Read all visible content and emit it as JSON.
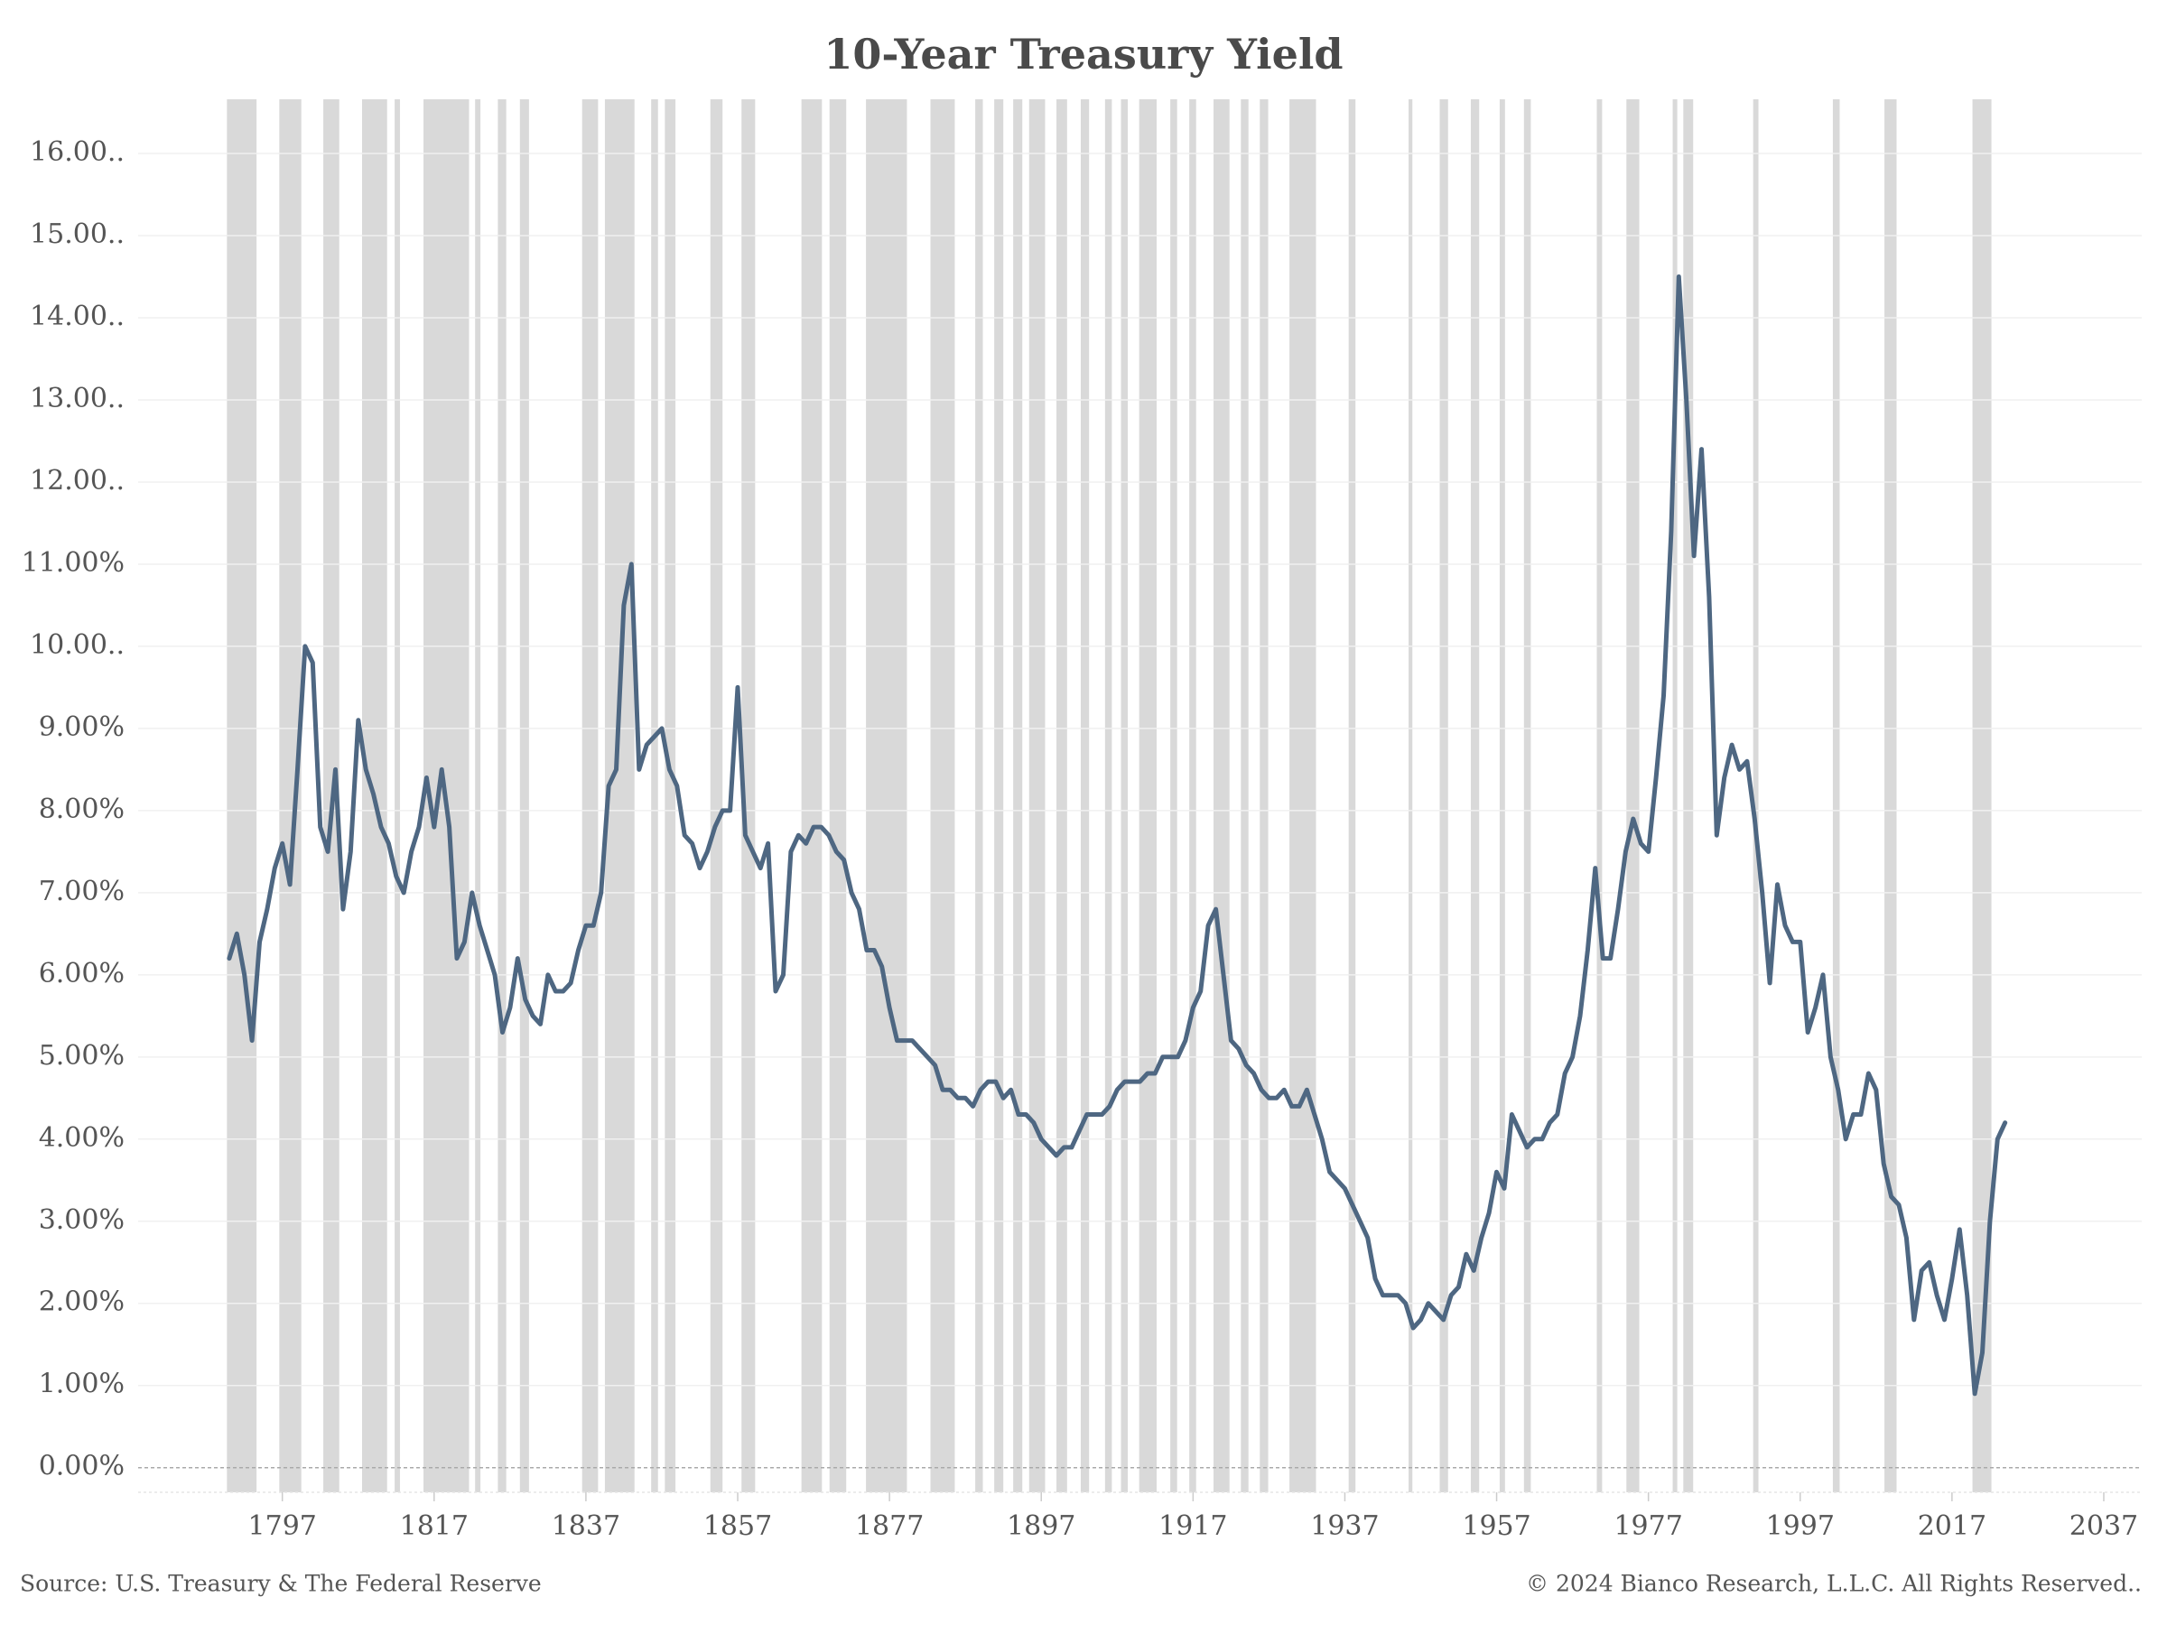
{
  "chart_data": {
    "type": "line",
    "title": "10-Year Treasury Yield",
    "source": "Source: U.S. Treasury & The Federal Reserve",
    "copyright": "© 2024 Bianco Research, L.L.C. All Rights Reserved..",
    "color": "#4e6782",
    "recession_color": "#d9d9d9",
    "grid": true,
    "xlim": [
      1778,
      2042
    ],
    "ylim": [
      -0.3,
      16.66
    ],
    "xticks": [
      1797,
      1817,
      1837,
      1857,
      1877,
      1897,
      1917,
      1937,
      1957,
      1977,
      1997,
      2017,
      2037
    ],
    "yticks": [
      {
        "value": 0,
        "label": "0.00%"
      },
      {
        "value": 1,
        "label": "1.00%"
      },
      {
        "value": 2,
        "label": "2.00%"
      },
      {
        "value": 3,
        "label": "3.00%"
      },
      {
        "value": 4,
        "label": "4.00%"
      },
      {
        "value": 5,
        "label": "5.00%"
      },
      {
        "value": 6,
        "label": "6.00%"
      },
      {
        "value": 7,
        "label": "7.00%"
      },
      {
        "value": 8,
        "label": "8.00%"
      },
      {
        "value": 9,
        "label": "9.00%"
      },
      {
        "value": 10,
        "label": "10.00.."
      },
      {
        "value": 11,
        "label": "11.00%"
      },
      {
        "value": 12,
        "label": "12.00.."
      },
      {
        "value": 13,
        "label": "13.00.."
      },
      {
        "value": 14,
        "label": "14.00.."
      },
      {
        "value": 15,
        "label": "15.00.."
      },
      {
        "value": 16,
        "label": "16.00.."
      }
    ],
    "recessions": [
      [
        1789.7,
        1793.6
      ],
      [
        1796.6,
        1799.5
      ],
      [
        1802.4,
        1804.5
      ],
      [
        1807.5,
        1810.8
      ],
      [
        1811.8,
        1812.5
      ],
      [
        1815.6,
        1821.6
      ],
      [
        1822.4,
        1823.1
      ],
      [
        1825.4,
        1826.5
      ],
      [
        1828.3,
        1829.5
      ],
      [
        1836.5,
        1838.6
      ],
      [
        1839.5,
        1843.4
      ],
      [
        1845.6,
        1846.5
      ],
      [
        1847.4,
        1848.8
      ],
      [
        1853.4,
        1855.0
      ],
      [
        1857.5,
        1859.3
      ],
      [
        1865.4,
        1868.1
      ],
      [
        1869.1,
        1871.3
      ],
      [
        1873.9,
        1879.3
      ],
      [
        1882.4,
        1885.6
      ],
      [
        1888.3,
        1889.3
      ],
      [
        1890.8,
        1892.0
      ],
      [
        1893.3,
        1894.5
      ],
      [
        1895.4,
        1897.5
      ],
      [
        1899.0,
        1900.4
      ],
      [
        1902.2,
        1903.3
      ],
      [
        1905.4,
        1906.3
      ],
      [
        1907.5,
        1908.4
      ],
      [
        1909.9,
        1912.2
      ],
      [
        1914.0,
        1914.9
      ],
      [
        1916.5,
        1917.4
      ],
      [
        1919.7,
        1921.8
      ],
      [
        1923.3,
        1924.3
      ],
      [
        1925.8,
        1926.9
      ],
      [
        1929.7,
        1933.2
      ],
      [
        1937.5,
        1938.4
      ],
      [
        1945.4,
        1945.9
      ],
      [
        1949.5,
        1950.6
      ],
      [
        1953.6,
        1954.7
      ],
      [
        1957.4,
        1958.1
      ],
      [
        1960.6,
        1961.5
      ],
      [
        1970.2,
        1970.9
      ],
      [
        1974.1,
        1975.8
      ],
      [
        1980.2,
        1980.8
      ],
      [
        1981.6,
        1982.9
      ],
      [
        1990.8,
        1991.5
      ],
      [
        2001.3,
        2002.2
      ],
      [
        2008.1,
        2009.7
      ],
      [
        2019.7,
        2022.2
      ]
    ],
    "x": [
      1790,
      1791,
      1792,
      1793,
      1794,
      1795,
      1796,
      1797,
      1798,
      1799,
      1800,
      1801,
      1802,
      1803,
      1804,
      1805,
      1806,
      1807,
      1808,
      1809,
      1810,
      1811,
      1812,
      1813,
      1814,
      1815,
      1816,
      1817,
      1818,
      1819,
      1820,
      1821,
      1822,
      1823,
      1824,
      1825,
      1826,
      1827,
      1828,
      1829,
      1830,
      1831,
      1832,
      1833,
      1834,
      1835,
      1836,
      1837,
      1838,
      1839,
      1840,
      1841,
      1842,
      1843,
      1844,
      1845,
      1846,
      1847,
      1848,
      1849,
      1850,
      1851,
      1852,
      1853,
      1854,
      1855,
      1856,
      1857,
      1858,
      1859,
      1860,
      1861,
      1862,
      1863,
      1864,
      1865,
      1866,
      1867,
      1868,
      1869,
      1870,
      1871,
      1872,
      1873,
      1874,
      1875,
      1876,
      1877,
      1878,
      1879,
      1880,
      1881,
      1882,
      1883,
      1884,
      1885,
      1886,
      1887,
      1888,
      1889,
      1890,
      1891,
      1892,
      1893,
      1894,
      1895,
      1896,
      1897,
      1898,
      1899,
      1900,
      1901,
      1902,
      1903,
      1904,
      1905,
      1906,
      1907,
      1908,
      1909,
      1910,
      1911,
      1912,
      1913,
      1914,
      1915,
      1916,
      1917,
      1918,
      1919,
      1920,
      1921,
      1922,
      1923,
      1924,
      1925,
      1926,
      1927,
      1928,
      1929,
      1930,
      1931,
      1932,
      1933,
      1934,
      1935,
      1936,
      1937,
      1938,
      1939,
      1940,
      1941,
      1942,
      1943,
      1944,
      1945,
      1946,
      1947,
      1948,
      1949,
      1950,
      1951,
      1952,
      1953,
      1954,
      1955,
      1956,
      1957,
      1958,
      1959,
      1960,
      1961,
      1962,
      1963,
      1964,
      1965,
      1966,
      1967,
      1968,
      1969,
      1970,
      1971,
      1972,
      1973,
      1974,
      1975,
      1976,
      1977,
      1978,
      1979,
      1980,
      1981,
      1982,
      1983,
      1984,
      1985,
      1986,
      1987,
      1988,
      1989,
      1990,
      1991,
      1992,
      1993,
      1994,
      1995,
      1996,
      1997,
      1998,
      1999,
      2000,
      2001,
      2002,
      2003,
      2004,
      2005,
      2006,
      2007,
      2008,
      2009,
      2010,
      2011,
      2012,
      2013,
      2014,
      2015,
      2016,
      2017,
      2018,
      2019,
      2020,
      2021,
      2022,
      2023,
      2024
    ],
    "values": [
      6.2,
      6.5,
      6.0,
      5.2,
      6.4,
      6.8,
      7.3,
      7.6,
      7.1,
      8.5,
      10.0,
      9.8,
      7.8,
      7.5,
      8.5,
      6.8,
      7.5,
      9.1,
      8.5,
      8.2,
      7.8,
      7.6,
      7.2,
      7.0,
      7.5,
      7.8,
      8.4,
      7.8,
      8.5,
      7.8,
      6.2,
      6.4,
      7.0,
      6.6,
      6.3,
      6.0,
      5.3,
      5.6,
      6.2,
      5.7,
      5.5,
      5.4,
      6.0,
      5.8,
      5.8,
      5.9,
      6.3,
      6.6,
      6.6,
      7.0,
      8.3,
      8.5,
      10.5,
      11.0,
      8.5,
      8.8,
      8.9,
      9.0,
      8.5,
      8.3,
      7.7,
      7.6,
      7.3,
      7.5,
      7.8,
      8.0,
      8.0,
      9.5,
      7.7,
      7.5,
      7.3,
      7.6,
      5.8,
      6.0,
      7.5,
      7.7,
      7.6,
      7.8,
      7.8,
      7.7,
      7.5,
      7.4,
      7.0,
      6.8,
      6.3,
      6.3,
      6.1,
      5.6,
      5.2,
      5.2,
      5.2,
      5.1,
      5.0,
      4.9,
      4.6,
      4.6,
      4.5,
      4.5,
      4.4,
      4.6,
      4.7,
      4.7,
      4.5,
      4.6,
      4.3,
      4.3,
      4.2,
      4.0,
      3.9,
      3.8,
      3.9,
      3.9,
      4.1,
      4.3,
      4.3,
      4.3,
      4.4,
      4.6,
      4.7,
      4.7,
      4.7,
      4.8,
      4.8,
      5.0,
      5.0,
      5.0,
      5.2,
      5.6,
      5.8,
      6.6,
      6.8,
      6.0,
      5.2,
      5.1,
      4.9,
      4.8,
      4.6,
      4.5,
      4.5,
      4.6,
      4.4,
      4.4,
      4.6,
      4.3,
      4.0,
      3.6,
      3.5,
      3.4,
      3.2,
      3.0,
      2.8,
      2.3,
      2.1,
      2.1,
      2.1,
      2.0,
      1.7,
      1.8,
      2.0,
      1.9,
      1.8,
      2.1,
      2.2,
      2.6,
      2.4,
      2.8,
      3.1,
      3.6,
      3.4,
      4.3,
      4.1,
      3.9,
      4.0,
      4.0,
      4.2,
      4.3,
      4.8,
      5.0,
      5.5,
      6.3,
      7.3,
      6.2,
      6.2,
      6.8,
      7.5,
      7.9,
      7.6,
      7.5,
      8.4,
      9.4,
      11.4,
      14.5,
      13.0,
      11.1,
      12.4,
      10.6,
      7.7,
      8.4,
      8.8,
      8.5,
      8.6,
      7.9,
      7.0,
      5.9,
      7.1,
      6.6,
      6.4,
      6.4,
      5.3,
      5.6,
      6.0,
      5.0,
      4.6,
      4.0,
      4.3,
      4.3,
      4.8,
      4.6,
      3.7,
      3.3,
      3.2,
      2.8,
      1.8,
      2.4,
      2.5,
      2.1,
      1.8,
      2.3,
      2.9,
      2.1,
      0.9,
      1.4,
      3.0,
      4.0,
      4.2
    ]
  }
}
